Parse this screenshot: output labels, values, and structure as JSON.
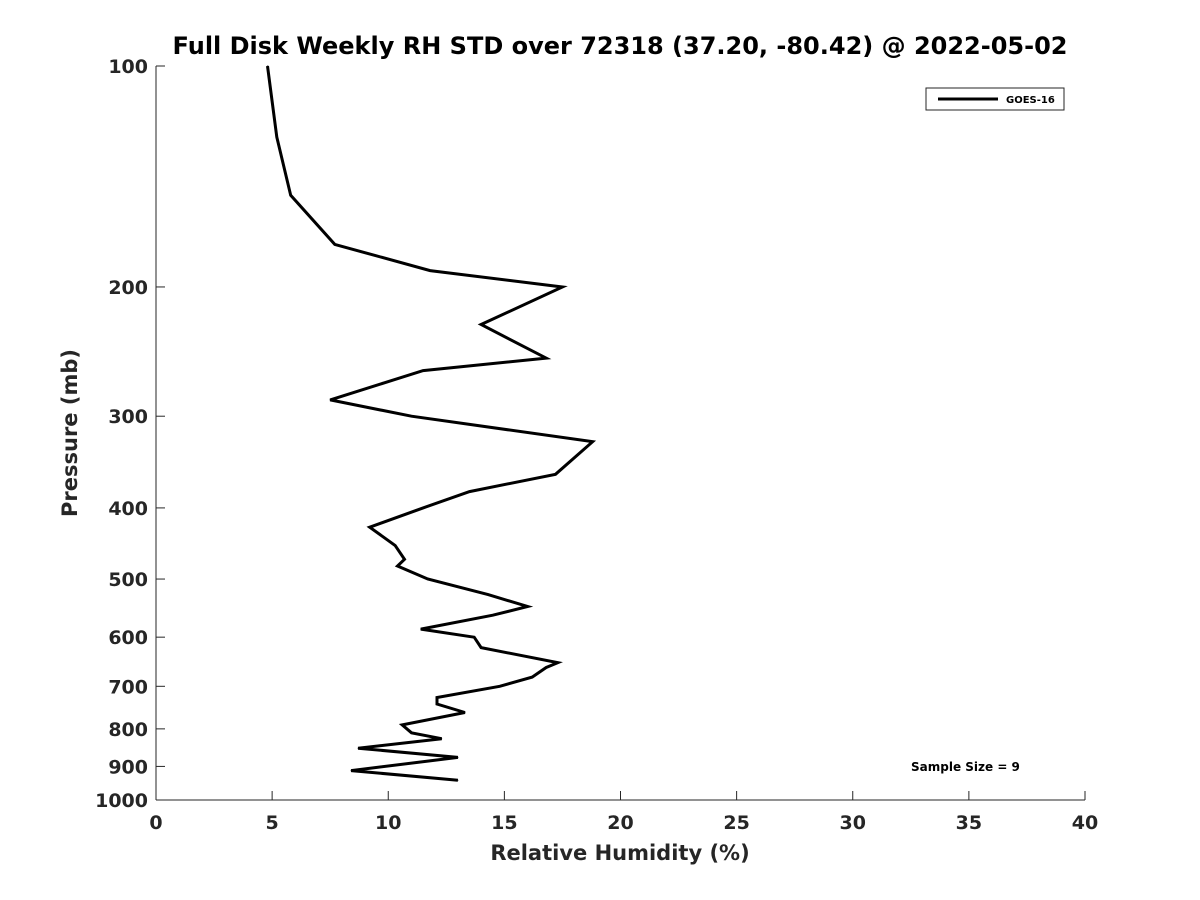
{
  "chart_data": {
    "type": "line",
    "title": "Full Disk Weekly RH STD over 72318 (37.20, -80.42) @ 2022-05-02",
    "xlabel": "Relative Humidity (%)",
    "ylabel": "Pressure (mb)",
    "xlim": [
      0,
      40
    ],
    "ylim": [
      1000,
      100
    ],
    "y_scale": "log",
    "x_ticks": [
      0,
      5,
      10,
      15,
      20,
      25,
      30,
      35,
      40
    ],
    "y_ticks": [
      100,
      200,
      300,
      400,
      500,
      600,
      700,
      800,
      900,
      1000
    ],
    "grid": false,
    "legend_position": "top-right",
    "annotation": "Sample Size = 9",
    "series": [
      {
        "name": "GOES-16",
        "color": "#000000",
        "points": [
          {
            "x": 4.8,
            "p": 100
          },
          {
            "x": 5.2,
            "p": 125
          },
          {
            "x": 5.8,
            "p": 150
          },
          {
            "x": 7.7,
            "p": 175
          },
          {
            "x": 11.8,
            "p": 190
          },
          {
            "x": 17.5,
            "p": 200
          },
          {
            "x": 14.0,
            "p": 225
          },
          {
            "x": 16.8,
            "p": 250
          },
          {
            "x": 11.5,
            "p": 260
          },
          {
            "x": 7.5,
            "p": 285
          },
          {
            "x": 11.0,
            "p": 300
          },
          {
            "x": 18.8,
            "p": 325
          },
          {
            "x": 17.2,
            "p": 360
          },
          {
            "x": 13.5,
            "p": 380
          },
          {
            "x": 11.5,
            "p": 400
          },
          {
            "x": 9.2,
            "p": 425
          },
          {
            "x": 10.3,
            "p": 450
          },
          {
            "x": 10.7,
            "p": 470
          },
          {
            "x": 10.4,
            "p": 480
          },
          {
            "x": 11.7,
            "p": 500
          },
          {
            "x": 14.3,
            "p": 525
          },
          {
            "x": 16.0,
            "p": 545
          },
          {
            "x": 14.5,
            "p": 560
          },
          {
            "x": 11.4,
            "p": 585
          },
          {
            "x": 13.7,
            "p": 600
          },
          {
            "x": 14.0,
            "p": 620
          },
          {
            "x": 17.3,
            "p": 650
          },
          {
            "x": 16.8,
            "p": 660
          },
          {
            "x": 16.2,
            "p": 680
          },
          {
            "x": 14.8,
            "p": 700
          },
          {
            "x": 12.1,
            "p": 725
          },
          {
            "x": 12.1,
            "p": 740
          },
          {
            "x": 13.3,
            "p": 760
          },
          {
            "x": 10.6,
            "p": 790
          },
          {
            "x": 11.0,
            "p": 810
          },
          {
            "x": 12.3,
            "p": 825
          },
          {
            "x": 8.7,
            "p": 850
          },
          {
            "x": 13.0,
            "p": 875
          },
          {
            "x": 8.4,
            "p": 912
          },
          {
            "x": 13.0,
            "p": 940
          }
        ]
      }
    ]
  }
}
